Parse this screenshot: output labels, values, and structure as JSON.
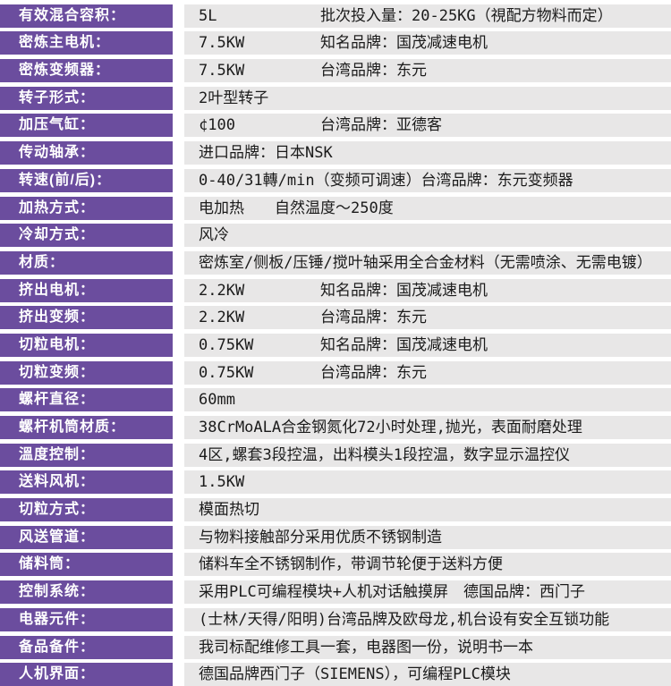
{
  "colors": {
    "label_bg": "#6b4d9e",
    "label_text": "#ffffff",
    "value_bg": "#e8e7e7",
    "value_text": "#1b1b1b",
    "page_bg": "#ffffff"
  },
  "table": {
    "rows": [
      {
        "label": "有效混合容积：",
        "value": "5L",
        "brand": "批次投入量：20-25KG（視配方物料而定）"
      },
      {
        "label": "密炼主电机：",
        "value": "7.5KW",
        "brand": "知名品牌：国茂减速电机"
      },
      {
        "label": "密炼变频器：",
        "value": "7.5KW",
        "brand": "台湾品牌：东元"
      },
      {
        "label": "转子形式：",
        "value": "2叶型转子"
      },
      {
        "label": "加压气缸：",
        "value": "¢100",
        "brand": "台湾品牌：亚德客"
      },
      {
        "label": "传动轴承：",
        "value": "进口品牌：日本NSK"
      },
      {
        "label": "转速(前/后)：",
        "value": "0-40/31轉/min（变频可调速）台湾品牌：东元变频器"
      },
      {
        "label": "加热方式：",
        "value": "电加热　　自然温度～250度"
      },
      {
        "label": "冷却方式：",
        "value": "风冷"
      },
      {
        "label": "材质：",
        "value": "密炼室/侧板/压锤/搅叶轴采用全合金材料（无需喷涂、无需电镀）"
      },
      {
        "label": "挤出电机：",
        "value": "2.2KW",
        "brand": "知名品牌：国茂减速电机"
      },
      {
        "label": "挤出变频：",
        "value": "2.2KW",
        "brand": "台湾品牌：东元"
      },
      {
        "label": "切粒电机：",
        "value": "0.75KW",
        "brand": "知名品牌：国茂减速电机"
      },
      {
        "label": "切粒变频：",
        "value": "0.75KW",
        "brand": "台湾品牌：东元"
      },
      {
        "label": "螺杆直径：",
        "value": "60mm"
      },
      {
        "label": "螺杆机筒材质：",
        "value": "38CrMoALA合金钢氮化72小时处理,抛光，表面耐磨处理"
      },
      {
        "label": "溫度控制：",
        "value": "4区,螺套3段控温，出料模头1段控温，数字显示温控仪"
      },
      {
        "label": "送料风机：",
        "value": "1.5KW"
      },
      {
        "label": "切粒方式：",
        "value": "模面热切"
      },
      {
        "label": "风送管道：",
        "value": "与物料接触部分采用优质不锈钢制造"
      },
      {
        "label": "储料筒：",
        "value": "储料车全不锈钢制作，带调节轮便于送料方便"
      },
      {
        "label": "控制系统：",
        "value": "采用PLC可编程模块+人机对话触摸屏　德国品牌：西门子"
      },
      {
        "label": "电器元件：",
        "value": "(士林/天得/阳明)台湾品牌及欧母龙,机台设有安全互锁功能"
      },
      {
        "label": "备品备件：",
        "value": "我司标配维修工具一套，电器图一份，说明书一本"
      },
      {
        "label": "人机界面：",
        "value": "德国品牌西门子（SIEMENS），可编程PLC模块"
      }
    ]
  }
}
